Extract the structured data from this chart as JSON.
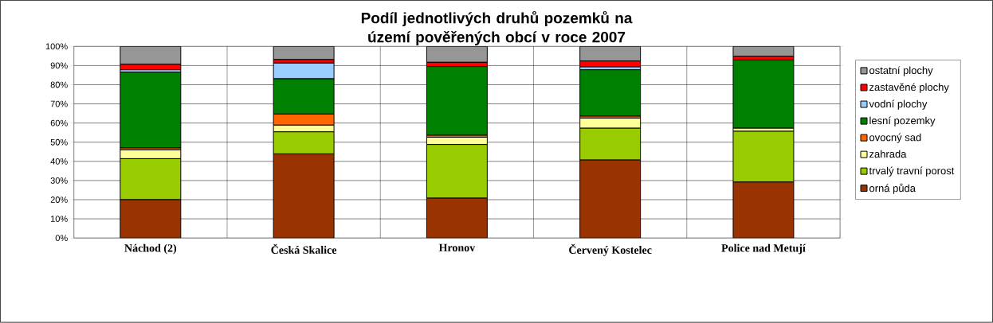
{
  "chart_data": {
    "type": "bar",
    "stacked": true,
    "title": "Podíl jednotlivých druhů pozemků na území pověřených obcí v roce 2007",
    "categories": [
      "Náchod (2)",
      "Česká Skalice",
      "Hronov",
      "Červený Kostelec",
      "Police nad Metují"
    ],
    "series": [
      {
        "name": "orná půda",
        "color": "#993300",
        "values": [
          20.0,
          43.9,
          20.8,
          40.7,
          29.2
        ]
      },
      {
        "name": "trvalý travní porost",
        "color": "#99cc00",
        "values": [
          21.4,
          11.5,
          28.0,
          16.6,
          26.5
        ]
      },
      {
        "name": "zahrada",
        "color": "#ffff99",
        "values": [
          4.6,
          3.5,
          3.8,
          5.3,
          1.6
        ]
      },
      {
        "name": "ovocný sad",
        "color": "#ff6600",
        "values": [
          1.0,
          5.8,
          1.0,
          1.0,
          null
        ]
      },
      {
        "name": "lesní pozemky",
        "color": "#008000",
        "values": [
          39.6,
          18.4,
          35.9,
          24.2,
          35.6
        ]
      },
      {
        "name": "vodní plochy",
        "color": "#99ccff",
        "values": [
          1.2,
          8.2,
          null,
          1.5,
          null
        ]
      },
      {
        "name": "zastavěné plochy",
        "color": "#ff0000",
        "values": [
          2.9,
          1.8,
          2.2,
          3.1,
          2.0
        ]
      },
      {
        "name": "ostatní plochy",
        "color": "#969696",
        "values": [
          9.3,
          6.9,
          8.3,
          7.6,
          5.1
        ]
      }
    ],
    "ylim": [
      0,
      100
    ],
    "yticks": [
      {
        "value": 0,
        "label": "0%"
      },
      {
        "value": 10,
        "label": "10%"
      },
      {
        "value": 20,
        "label": "20%"
      },
      {
        "value": 30,
        "label": "30%"
      },
      {
        "value": 40,
        "label": "40%"
      },
      {
        "value": 50,
        "label": "50%"
      },
      {
        "value": 60,
        "label": "60%"
      },
      {
        "value": 70,
        "label": "70%"
      },
      {
        "value": 80,
        "label": "80%"
      },
      {
        "value": 90,
        "label": "90%"
      },
      {
        "value": 100,
        "label": "100%"
      }
    ],
    "grid": true,
    "legend": "right"
  }
}
